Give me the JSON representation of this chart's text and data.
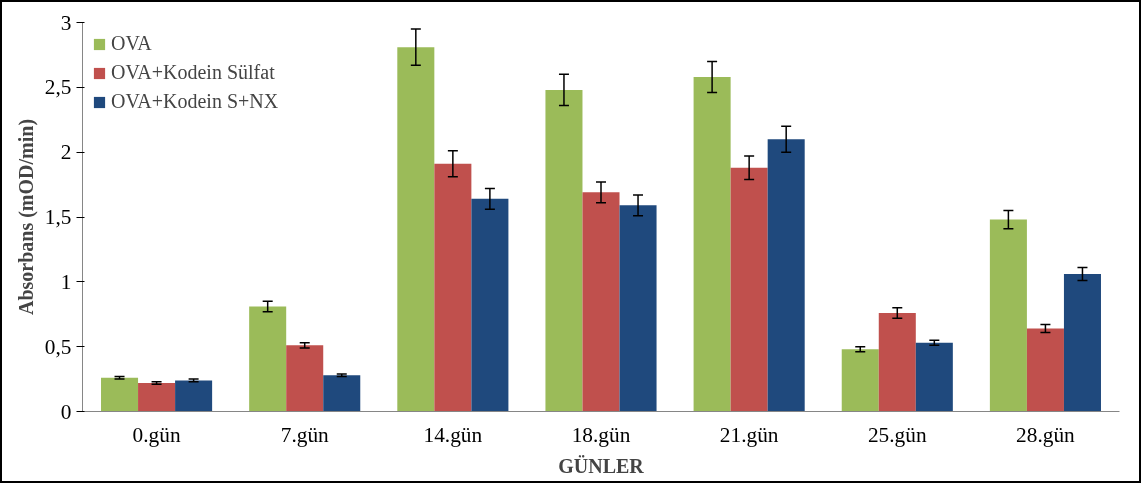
{
  "chart_data": {
    "type": "bar",
    "xlabel": "GÜNLER",
    "ylabel": "Absorbans (mOD/min)",
    "categories": [
      "0.gün",
      "7.gün",
      "14.gün",
      "18.gün",
      "21.gün",
      "25.gün",
      "28.gün"
    ],
    "series": [
      {
        "name": "OVA",
        "color": "#9bbb59",
        "values": [
          0.26,
          0.81,
          2.81,
          2.48,
          2.58,
          0.48,
          1.48
        ],
        "errors": [
          0.01,
          0.04,
          0.14,
          0.12,
          0.12,
          0.02,
          0.07
        ]
      },
      {
        "name": "OVA+Kodein Sülfat",
        "color": "#c0504d",
        "values": [
          0.22,
          0.51,
          1.91,
          1.69,
          1.88,
          0.76,
          0.64
        ],
        "errors": [
          0.01,
          0.02,
          0.1,
          0.08,
          0.09,
          0.04,
          0.03
        ]
      },
      {
        "name": "OVA+Kodein S+NX",
        "color": "#1f497d",
        "values": [
          0.24,
          0.28,
          1.64,
          1.59,
          2.1,
          0.53,
          1.06
        ],
        "errors": [
          0.01,
          0.01,
          0.08,
          0.08,
          0.1,
          0.02,
          0.05
        ]
      }
    ],
    "ylim": [
      0,
      3
    ],
    "yticks": [
      0,
      {
        "value": 0.5,
        "label": "0,5"
      },
      1,
      {
        "value": 1.5,
        "label": "1,5"
      },
      2,
      {
        "value": 2.5,
        "label": "2,5"
      },
      3
    ],
    "grid": false,
    "legend": "top left"
  }
}
